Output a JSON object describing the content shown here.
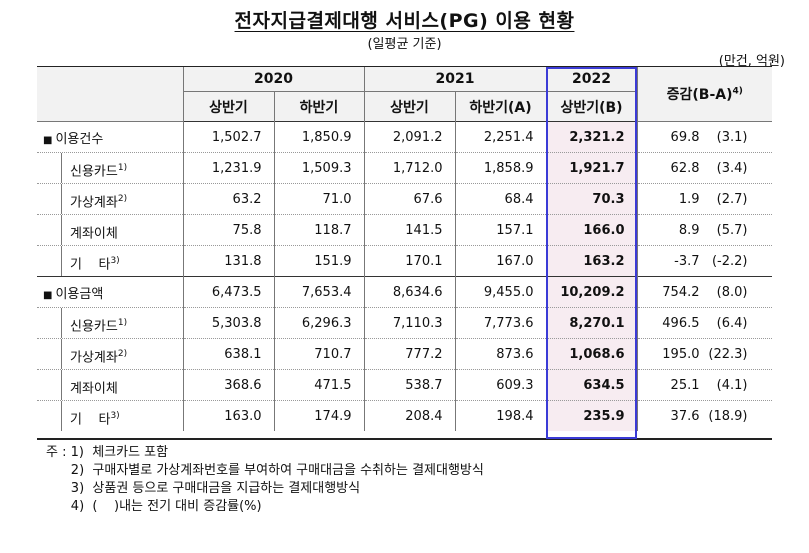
{
  "title": "전자지급결제대행 서비스(PG) 이용 현황",
  "subtitle": "(일평균 기준)",
  "unit": "(만건, 억원)",
  "headers": {
    "y2020": "2020",
    "y2021": "2021",
    "y2022": "2022",
    "h1": "상반기",
    "h2": "하반기",
    "h2a": "하반기(A)",
    "h1b": "상반기(B)",
    "change": "증감(B-A)",
    "change_sup": "4)"
  },
  "rows": [
    {
      "label": "이용건수",
      "sup": "",
      "level": 0,
      "v": [
        "1,502.7",
        "1,850.9",
        "2,091.2",
        "2,251.4",
        "2,321.2"
      ],
      "chg": "69.8",
      "pct": "(3.1)"
    },
    {
      "label": "신용카드",
      "sup": "1)",
      "level": 1,
      "v": [
        "1,231.9",
        "1,509.3",
        "1,712.0",
        "1,858.9",
        "1,921.7"
      ],
      "chg": "62.8",
      "pct": "(3.4)"
    },
    {
      "label": "가상계좌",
      "sup": "2)",
      "level": 1,
      "v": [
        "63.2",
        "71.0",
        "67.6",
        "68.4",
        "70.3"
      ],
      "chg": "1.9",
      "pct": "(2.7)"
    },
    {
      "label": "계좌이체",
      "sup": "",
      "level": 1,
      "v": [
        "75.8",
        "118.7",
        "141.5",
        "157.1",
        "166.0"
      ],
      "chg": "8.9",
      "pct": "(5.7)"
    },
    {
      "label": "기    타",
      "sup": "3)",
      "level": 1,
      "v": [
        "131.8",
        "151.9",
        "170.1",
        "167.0",
        "163.2"
      ],
      "chg": "-3.7",
      "pct": "(-2.2)"
    },
    {
      "label": "이용금액",
      "sup": "",
      "level": 0,
      "v": [
        "6,473.5",
        "7,653.4",
        "8,634.6",
        "9,455.0",
        "10,209.2"
      ],
      "chg": "754.2",
      "pct": "(8.0)"
    },
    {
      "label": "신용카드",
      "sup": "1)",
      "level": 1,
      "v": [
        "5,303.8",
        "6,296.3",
        "7,110.3",
        "7,773.6",
        "8,270.1"
      ],
      "chg": "496.5",
      "pct": "(6.4)"
    },
    {
      "label": "가상계좌",
      "sup": "2)",
      "level": 1,
      "v": [
        "638.1",
        "710.7",
        "777.2",
        "873.6",
        "1,068.6"
      ],
      "chg": "195.0",
      "pct": "(22.3)"
    },
    {
      "label": "계좌이체",
      "sup": "",
      "level": 1,
      "v": [
        "368.6",
        "471.5",
        "538.7",
        "609.3",
        "634.5"
      ],
      "chg": "25.1",
      "pct": "(4.1)"
    },
    {
      "label": "기    타",
      "sup": "3)",
      "level": 1,
      "v": [
        "163.0",
        "174.9",
        "208.4",
        "198.4",
        "235.9"
      ],
      "chg": "37.6",
      "pct": "(18.9)"
    }
  ],
  "footnotes": [
    "주 : 1)  체크카드 포함",
    "      2)  구매자별로 가상계좌번호를 부여하여 구매대금을 수취하는 결제대행방식",
    "      3)  상품권 등으로 구매대금을 지급하는 결제대행방식",
    "      4)  (    )내는 전기 대비 증감률(%)"
  ]
}
